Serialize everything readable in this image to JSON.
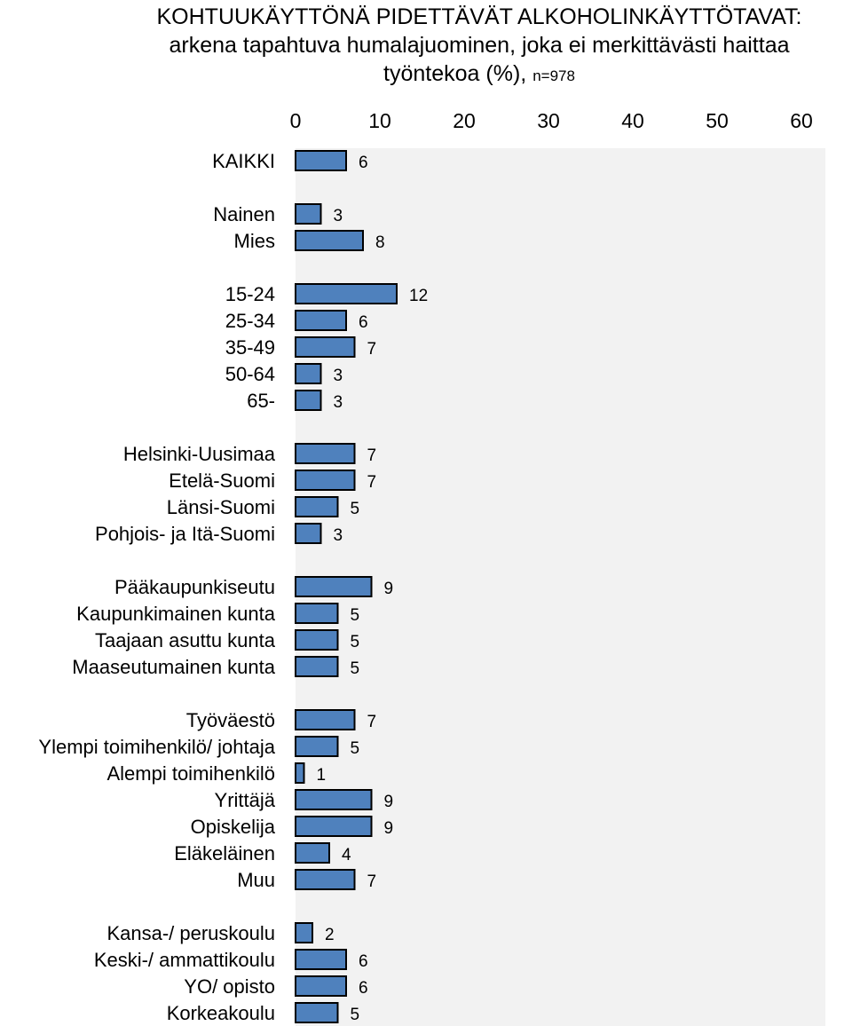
{
  "title": {
    "line1": "KOHTUUKÄYTTÖNÄ PIDETTÄVÄT ALKOHOLINKÄYTTÖTAVAT:",
    "line2": "arkena tapahtuva humalajuominen, joka ei merkittävästi haittaa",
    "line3": "työntekoa (%),",
    "n_label": "n=978"
  },
  "colors": {
    "bar_fill": "#4f81bd",
    "bar_stroke": "#000000",
    "plot_bg": "#f2f2f2"
  },
  "chart_data": {
    "type": "bar",
    "orientation": "horizontal",
    "xlim": [
      0,
      63
    ],
    "xticks": [
      0,
      10,
      20,
      30,
      40,
      50,
      60
    ],
    "grid": false,
    "data_labels": true,
    "groups": [
      [
        {
          "label": "KAIKKI",
          "value": 6
        }
      ],
      [
        {
          "label": "Nainen",
          "value": 3
        },
        {
          "label": "Mies",
          "value": 8
        }
      ],
      [
        {
          "label": "15-24",
          "value": 12
        },
        {
          "label": "25-34",
          "value": 6
        },
        {
          "label": "35-49",
          "value": 7
        },
        {
          "label": "50-64",
          "value": 3
        },
        {
          "label": "65-",
          "value": 3
        }
      ],
      [
        {
          "label": "Helsinki-Uusimaa",
          "value": 7
        },
        {
          "label": "Etelä-Suomi",
          "value": 7
        },
        {
          "label": "Länsi-Suomi",
          "value": 5
        },
        {
          "label": "Pohjois- ja Itä-Suomi",
          "value": 3
        }
      ],
      [
        {
          "label": "Pääkaupunkiseutu",
          "value": 9
        },
        {
          "label": "Kaupunkimainen kunta",
          "value": 5
        },
        {
          "label": "Taajaan asuttu kunta",
          "value": 5
        },
        {
          "label": "Maaseutumainen kunta",
          "value": 5
        }
      ],
      [
        {
          "label": "Työväestö",
          "value": 7
        },
        {
          "label": "Ylempi toimihenkilö/ johtaja",
          "value": 5
        },
        {
          "label": "Alempi toimihenkilö",
          "value": 1
        },
        {
          "label": "Yrittäjä",
          "value": 9
        },
        {
          "label": "Opiskelija",
          "value": 9
        },
        {
          "label": "Eläkeläinen",
          "value": 4
        },
        {
          "label": "Muu",
          "value": 7
        }
      ],
      [
        {
          "label": "Kansa-/ peruskoulu",
          "value": 2
        },
        {
          "label": "Keski-/ ammattikoulu",
          "value": 6
        },
        {
          "label": "YO/ opisto",
          "value": 6
        },
        {
          "label": "Korkeakoulu",
          "value": 5
        }
      ]
    ]
  }
}
